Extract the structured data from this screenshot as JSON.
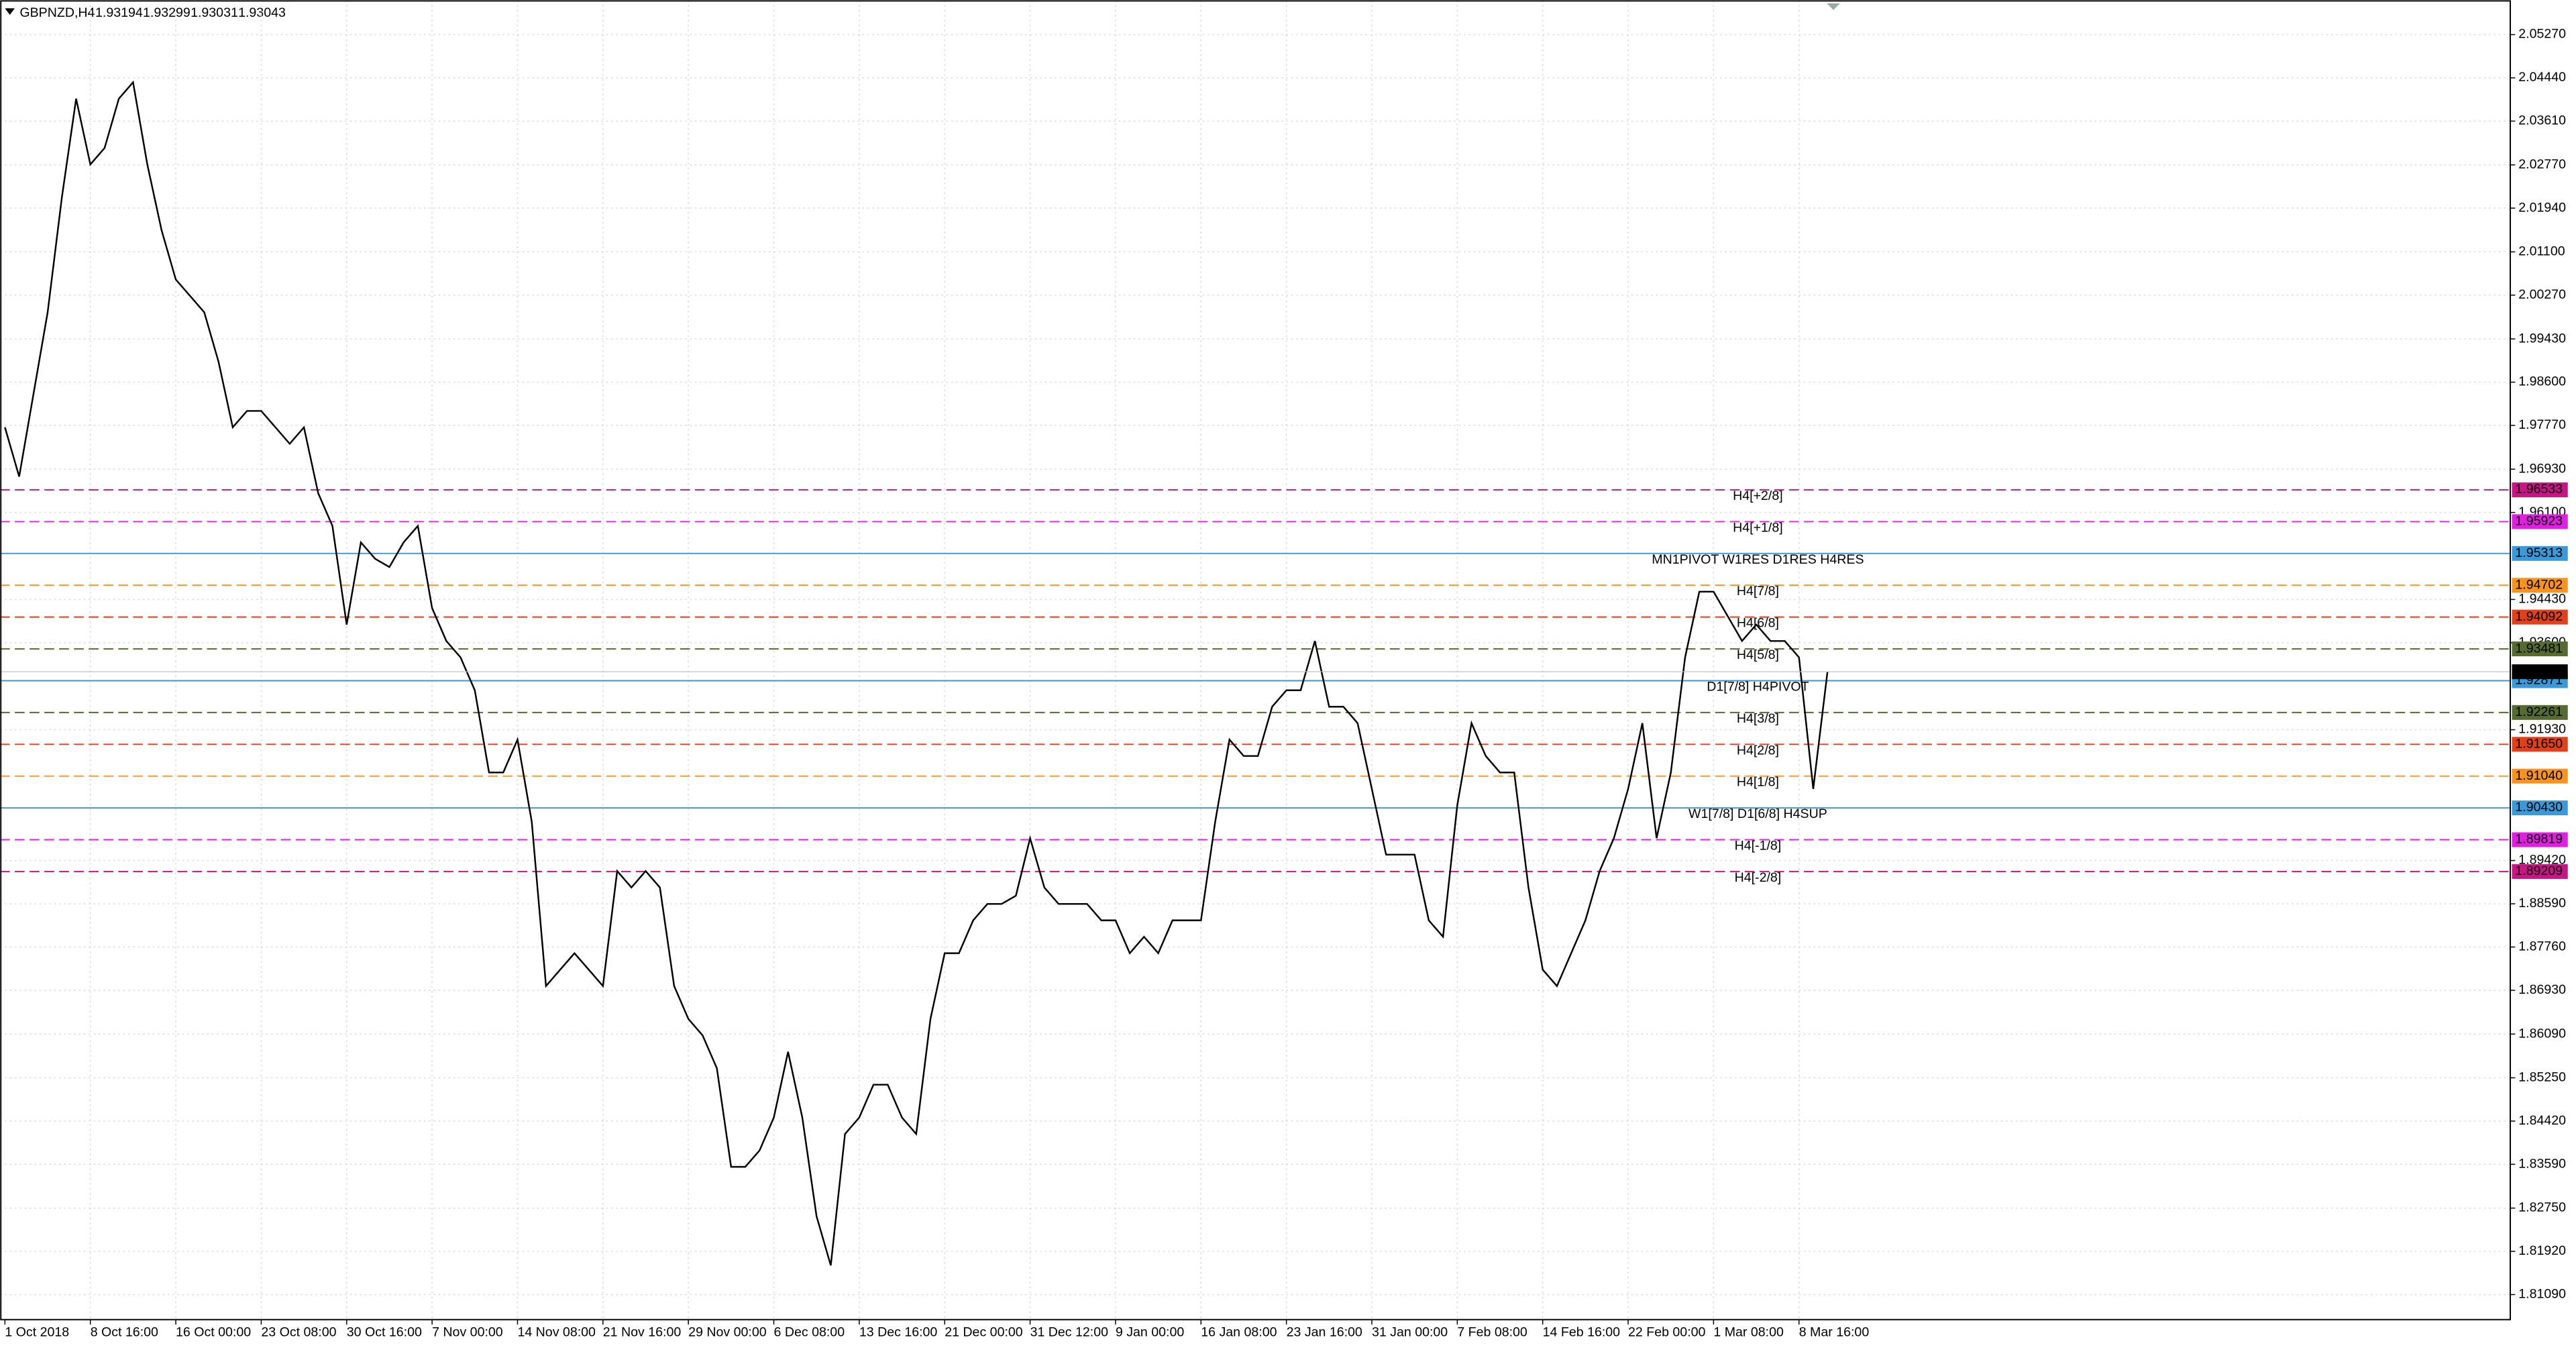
{
  "chart_data": {
    "type": "line",
    "title": "GBPNZD,H4",
    "header_values": [
      1.93194,
      1.93299,
      1.93031,
      1.93043
    ],
    "categories": [
      "1 Oct 2018",
      null,
      null,
      null,
      null,
      null,
      "8 Oct 16:00",
      null,
      null,
      null,
      null,
      null,
      "16 Oct 00:00",
      null,
      null,
      null,
      null,
      null,
      "23 Oct 08:00",
      null,
      null,
      null,
      null,
      null,
      "30 Oct 16:00",
      null,
      null,
      null,
      null,
      null,
      "7 Nov 00:00",
      null,
      null,
      null,
      null,
      null,
      "14 Nov 08:00",
      null,
      null,
      null,
      null,
      null,
      "21 Nov 16:00",
      null,
      null,
      null,
      null,
      null,
      "29 Nov 00:00",
      null,
      null,
      null,
      null,
      null,
      "6 Dec 08:00",
      null,
      null,
      null,
      null,
      null,
      "13 Dec 16:00",
      null,
      null,
      null,
      null,
      null,
      "21 Dec 00:00",
      null,
      null,
      null,
      null,
      null,
      "31 Dec 12:00",
      null,
      null,
      null,
      null,
      null,
      "9 Jan 00:00",
      null,
      null,
      null,
      null,
      null,
      "16 Jan 08:00",
      null,
      null,
      null,
      null,
      null,
      "23 Jan 16:00",
      null,
      null,
      null,
      null,
      null,
      "31 Jan 00:00",
      null,
      null,
      null,
      null,
      null,
      "7 Feb 08:00",
      null,
      null,
      null,
      null,
      null,
      "14 Feb 16:00",
      null,
      null,
      null,
      null,
      null,
      "22 Feb 00:00",
      null,
      null,
      null,
      null,
      null,
      "1 Mar 08:00",
      null,
      null,
      null,
      null,
      null,
      "8 Mar 16:00",
      null,
      null
    ],
    "series": [
      {
        "name": "GBPNZD",
        "color": "#000000",
        "values": [
          1.97733,
          1.96787,
          1.98363,
          1.9994,
          2.02148,
          2.0404,
          2.02778,
          2.03094,
          2.0404,
          2.04355,
          2.02778,
          2.01517,
          2.00571,
          2.00256,
          1.9994,
          1.98994,
          1.97733,
          1.98048,
          1.98048,
          1.97733,
          1.97417,
          1.97733,
          1.96471,
          1.95841,
          1.93948,
          1.95525,
          1.9521,
          1.95052,
          1.95525,
          1.95841,
          1.94264,
          1.93633,
          1.93318,
          1.92687,
          1.9111,
          1.9111,
          1.91741,
          1.90164,
          1.87011,
          1.87326,
          1.87641,
          1.87326,
          1.87011,
          1.89218,
          1.88903,
          1.89218,
          1.88903,
          1.87011,
          1.8638,
          1.86064,
          1.85434,
          1.83542,
          1.83542,
          1.83857,
          1.84488,
          1.85749,
          1.84488,
          1.82596,
          1.8165,
          1.84172,
          1.84488,
          1.85118,
          1.85118,
          1.84488,
          1.84172,
          1.8638,
          1.87641,
          1.87641,
          1.88272,
          1.88587,
          1.88587,
          1.88745,
          1.89849,
          1.88903,
          1.88587,
          1.88587,
          1.88587,
          1.88272,
          1.88272,
          1.87641,
          1.87957,
          1.87641,
          1.88272,
          1.88272,
          1.88272,
          1.90164,
          1.91741,
          1.91426,
          1.91426,
          1.92372,
          1.92687,
          1.92687,
          1.93633,
          1.92372,
          1.92372,
          1.92056,
          1.90795,
          1.89533,
          1.89533,
          1.89533,
          1.88272,
          1.87957,
          1.90479,
          1.92056,
          1.91426,
          1.9111,
          1.9111,
          1.88903,
          1.87326,
          1.87011,
          1.87641,
          1.88272,
          1.89218,
          1.89849,
          1.90795,
          1.92056,
          1.89849,
          1.9111,
          1.93318,
          1.94579,
          1.94579,
          1.94106,
          1.93633,
          1.93948,
          1.93633,
          1.93633,
          1.93318,
          1.90795,
          1.93043
        ]
      }
    ],
    "ylim": [
      1.8061,
      2.05932
    ],
    "yticks": [
      {
        "value": 2.0527,
        "label": "2.05270"
      },
      {
        "value": 2.0444,
        "label": "2.04440"
      },
      {
        "value": 2.0361,
        "label": "2.03610"
      },
      {
        "value": 2.0277,
        "label": "2.02770"
      },
      {
        "value": 2.0194,
        "label": "2.01940"
      },
      {
        "value": 2.011,
        "label": "2.01100"
      },
      {
        "value": 2.0027,
        "label": "2.00270"
      },
      {
        "value": 1.9943,
        "label": "1.99430"
      },
      {
        "value": 1.986,
        "label": "1.98600"
      },
      {
        "value": 1.9777,
        "label": "1.97770"
      },
      {
        "value": 1.9693,
        "label": "1.96930"
      },
      {
        "value": 1.961,
        "label": "1.96100"
      },
      {
        "value": 1.9443,
        "label": "1.94430"
      },
      {
        "value": 1.936,
        "label": "1.93600"
      },
      {
        "value": 1.9193,
        "label": "1.91930"
      },
      {
        "value": 1.8942,
        "label": "1.89420"
      },
      {
        "value": 1.8859,
        "label": "1.88590"
      },
      {
        "value": 1.8776,
        "label": "1.87760"
      },
      {
        "value": 1.8693,
        "label": "1.86930"
      },
      {
        "value": 1.8609,
        "label": "1.86090"
      },
      {
        "value": 1.8525,
        "label": "1.85250"
      },
      {
        "value": 1.8442,
        "label": "1.84420"
      },
      {
        "value": 1.8359,
        "label": "1.83590"
      },
      {
        "value": 1.8275,
        "label": "1.82750"
      },
      {
        "value": 1.8192,
        "label": "1.81920"
      },
      {
        "value": 1.8109,
        "label": "1.81090"
      }
    ],
    "grid": true,
    "levels": [
      {
        "value": 1.96533,
        "label": "H4[+2/8]",
        "color": "#c71585",
        "style": "dashed"
      },
      {
        "value": 1.95923,
        "label": "H4[+1/8]",
        "color": "#e020e0",
        "style": "dashed"
      },
      {
        "value": 1.95313,
        "label": "MN1PIVOT W1RES D1RES H4RES",
        "color": "#3a9ad9",
        "style": "solid"
      },
      {
        "value": 1.94702,
        "label": "H4[7/8]",
        "color": "#f7931e",
        "style": "dashed"
      },
      {
        "value": 1.94092,
        "label": "H4[6/8]",
        "color": "#e0401a",
        "style": "dashed"
      },
      {
        "value": 1.93481,
        "label": "H4[5/8]",
        "color": "#556b2f",
        "style": "dashed"
      },
      {
        "value": 1.92871,
        "label": "D1[7/8] H4PIVOT",
        "color": "#3a9ad9",
        "style": "solid"
      },
      {
        "value": 1.92261,
        "label": "H4[3/8]",
        "color": "#556b2f",
        "style": "dashed"
      },
      {
        "value": 1.9165,
        "value_label": "1.91650",
        "label": "H4[2/8]",
        "color": "#e0401a",
        "style": "dashed"
      },
      {
        "value": 1.9104,
        "value_label": "1.91040",
        "label": "H4[1/8]",
        "color": "#f7931e",
        "style": "dashed"
      },
      {
        "value": 1.9043,
        "value_label": "1.90430",
        "label": "W1[7/8] D1[6/8] H4SUP",
        "color": "#3a9ad9",
        "style": "solid"
      },
      {
        "value": 1.89819,
        "label": "H4[-1/8]",
        "color": "#e020e0",
        "style": "dashed"
      },
      {
        "value": 1.89209,
        "label": "H4[-2/8]",
        "color": "#c71585",
        "style": "dashed"
      }
    ],
    "current_price": 1.93043
  }
}
